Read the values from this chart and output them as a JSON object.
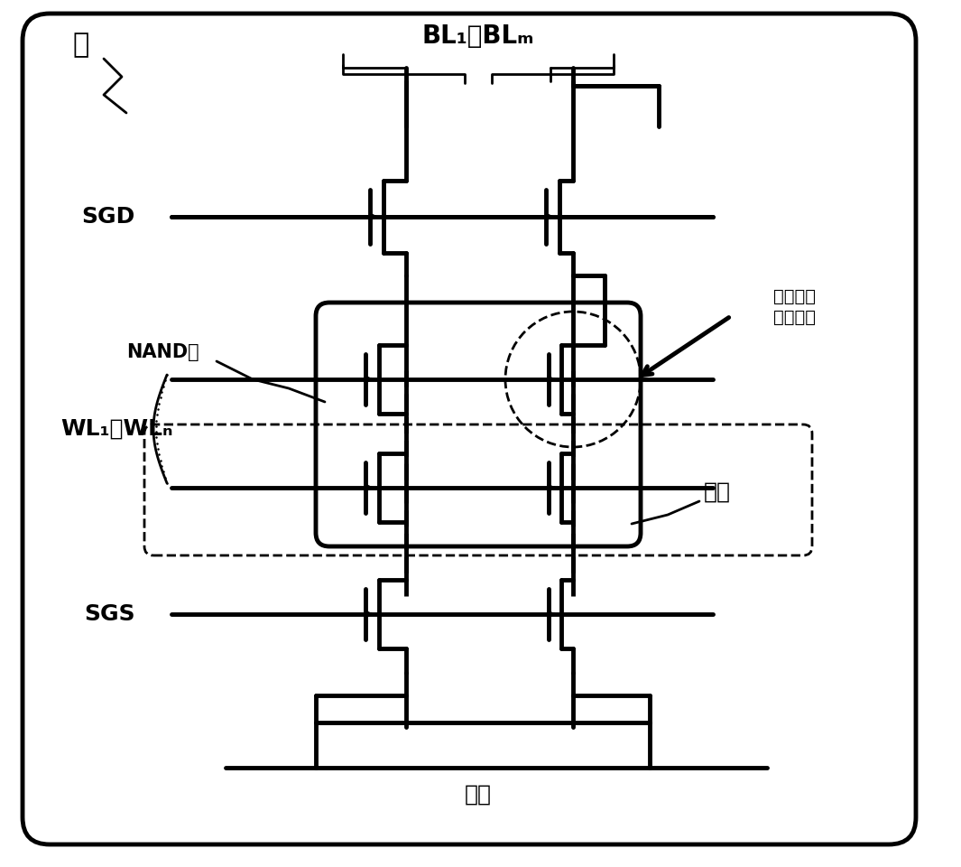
{
  "bg_color": "#ffffff",
  "line_color": "#000000",
  "lw": 3.5,
  "lw_thin": 2.0,
  "fig_w": 10.65,
  "fig_h": 9.6,
  "labels": {
    "block": "块",
    "BL": "BL₁～BLₘ",
    "SGD": "SGD",
    "NAND": "NAND串",
    "WL": "WL₁～WLₙ",
    "fet": "铁电场效\n应晶体管",
    "page": "页面",
    "SGS": "SGS",
    "source": "源线"
  }
}
